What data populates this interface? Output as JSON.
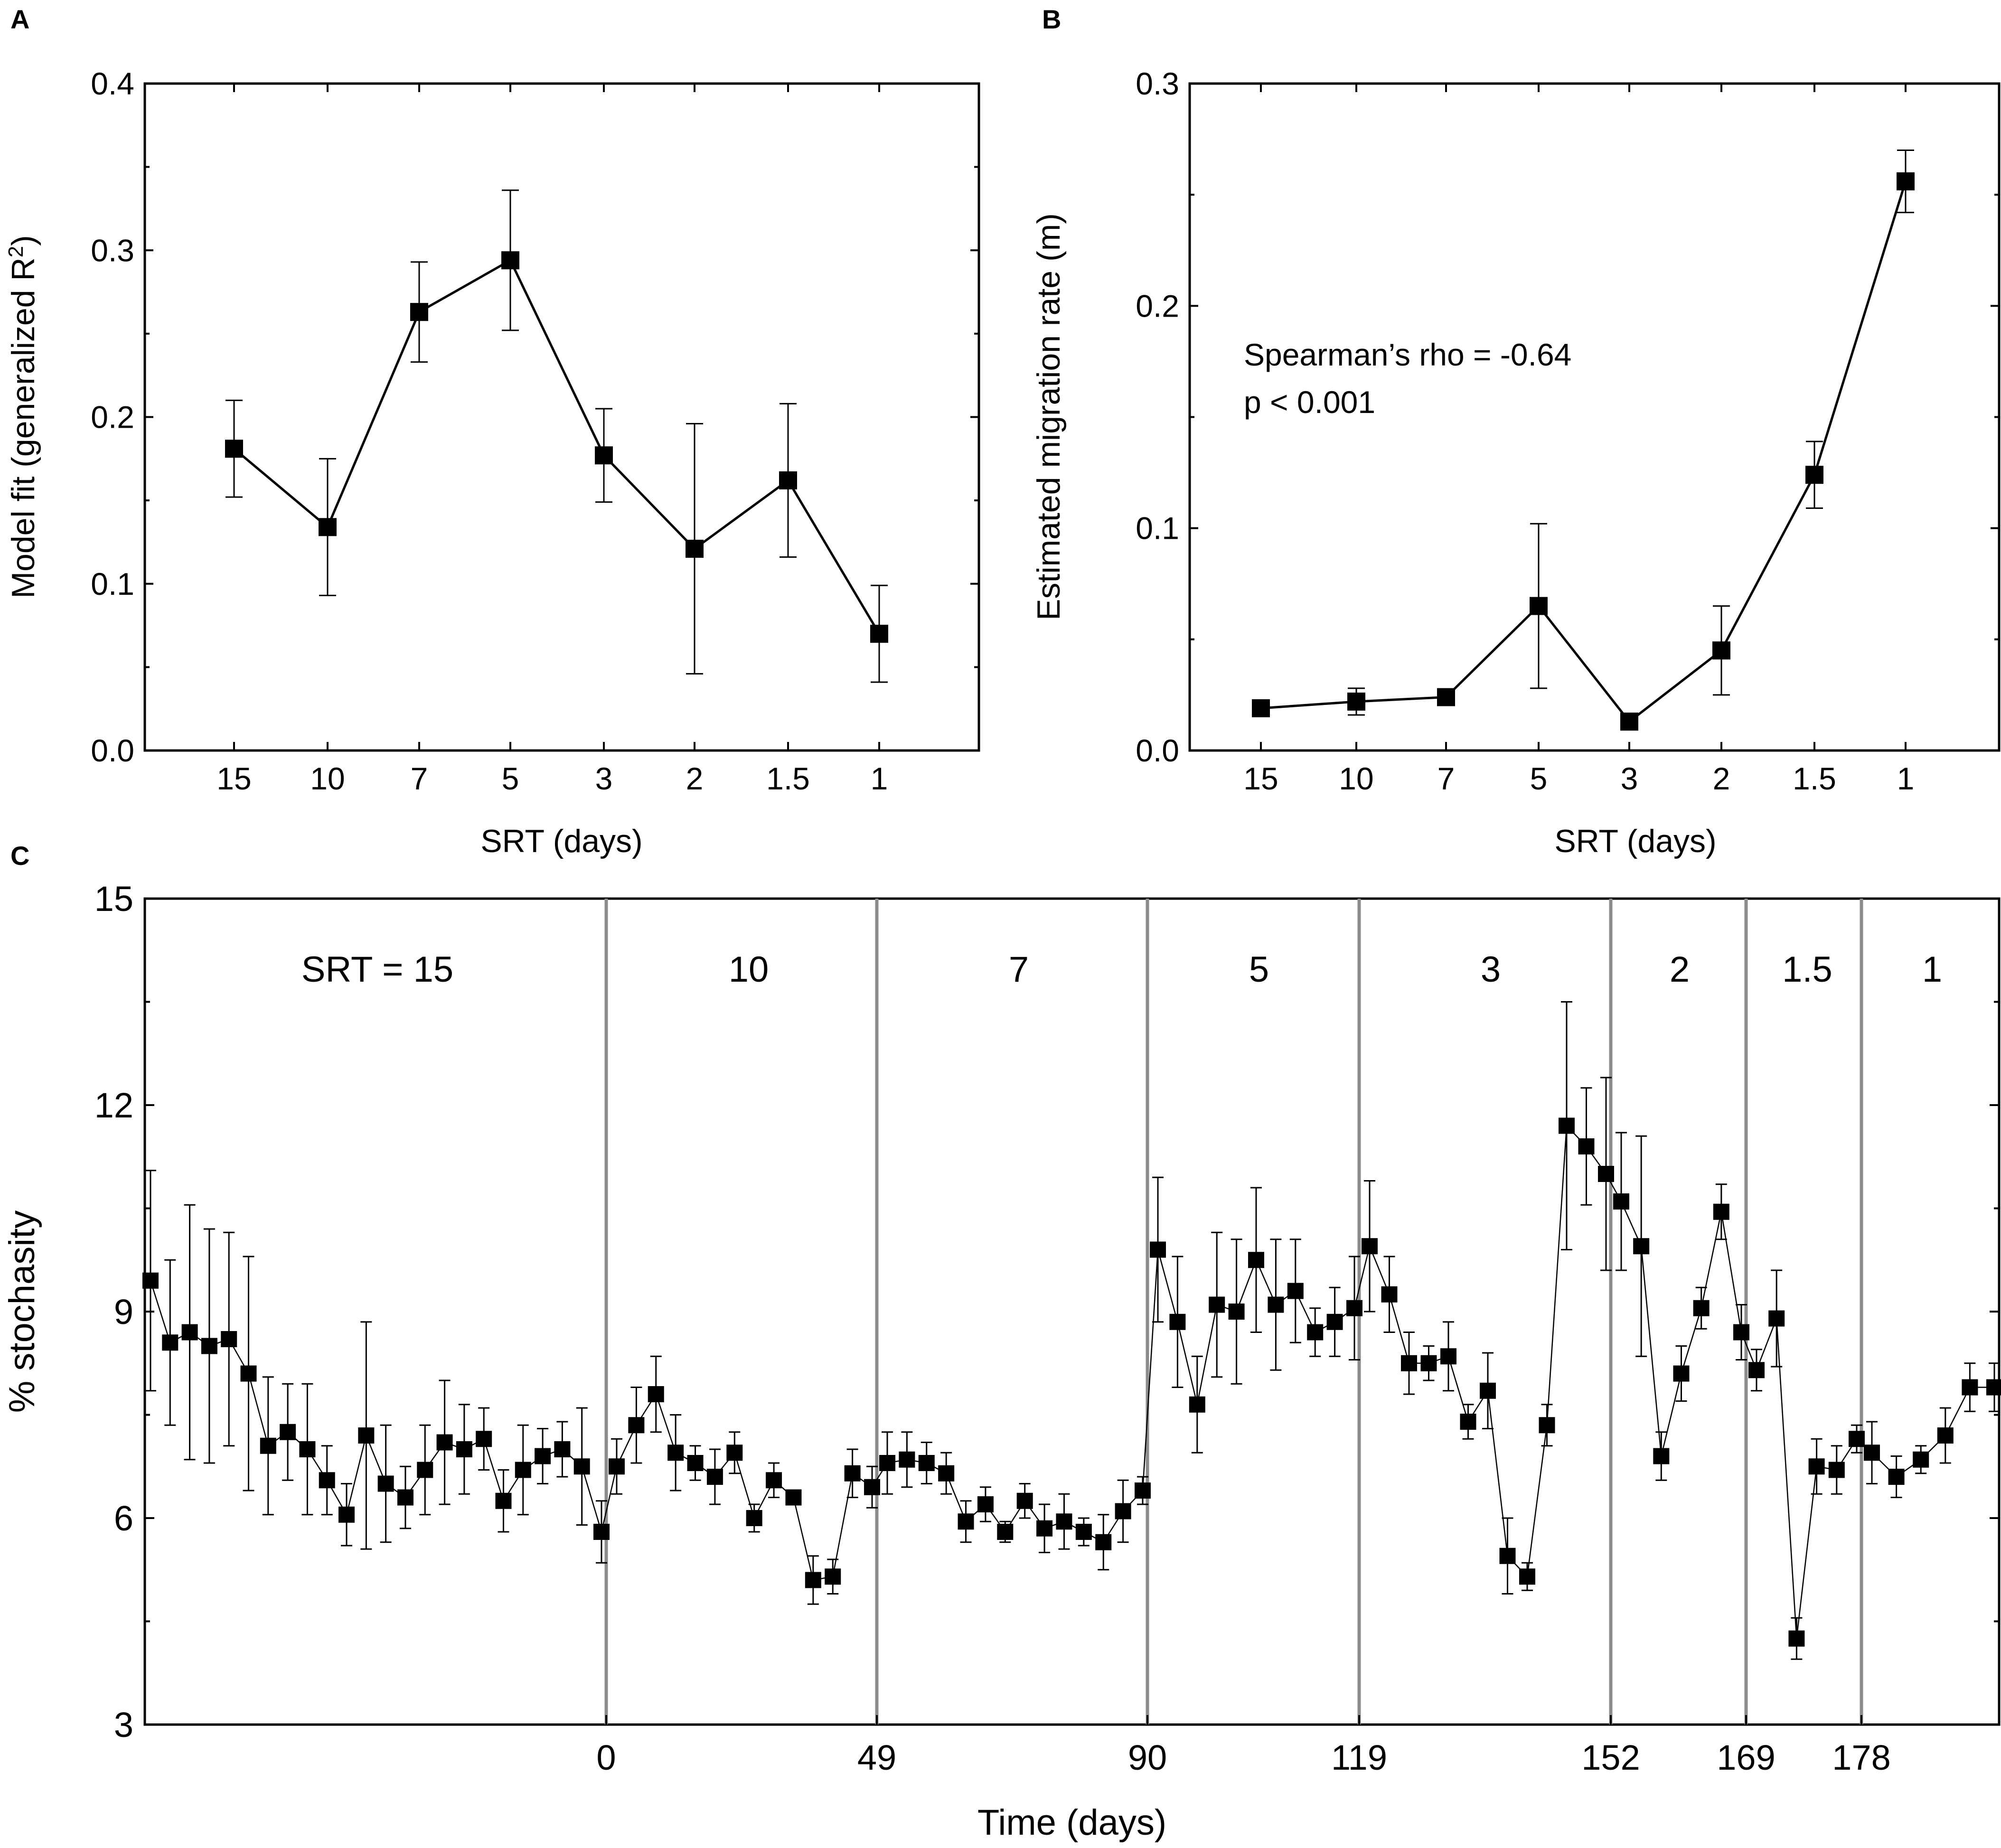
{
  "chart_data": [
    {
      "panel": "A",
      "type": "line",
      "title": "",
      "xlabel": "SRT (days)",
      "ylabel_main": "Model fit (generalized R",
      "ylabel_sup": "2",
      "ylabel_tail": ")",
      "categories": [
        "15",
        "10",
        "7",
        "5",
        "3",
        "2",
        "1.5",
        "1"
      ],
      "values": [
        0.181,
        0.134,
        0.263,
        0.294,
        0.177,
        0.121,
        0.162,
        0.07
      ],
      "errors": [
        0.029,
        0.041,
        0.03,
        0.042,
        0.028,
        0.075,
        0.046,
        0.029
      ],
      "ylim": [
        0.0,
        0.4
      ],
      "yticks": [
        "0.0",
        "0.1",
        "0.2",
        "0.3",
        "0.4"
      ],
      "marker": "square"
    },
    {
      "panel": "B",
      "type": "line",
      "title": "",
      "xlabel": "SRT (days)",
      "ylabel": "Estimated migration rate (m)",
      "categories": [
        "15",
        "10",
        "7",
        "5",
        "3",
        "2",
        "1.5",
        "1"
      ],
      "values": [
        0.019,
        0.022,
        0.024,
        0.065,
        0.013,
        0.045,
        0.124,
        0.256
      ],
      "errors": [
        0.003,
        0.006,
        0.003,
        0.037,
        0.002,
        0.02,
        0.015,
        0.014
      ],
      "ylim": [
        0.0,
        0.3
      ],
      "yticks": [
        "0.0",
        "0.1",
        "0.2",
        "0.3"
      ],
      "annotation": [
        "Spearman’s rho = -0.64",
        "p < 0.001"
      ],
      "marker": "square"
    },
    {
      "panel": "C",
      "type": "line",
      "title": "",
      "xlabel": "Time (days)",
      "ylabel": "% stochasity",
      "ylim": [
        3,
        15
      ],
      "yticks": [
        "3",
        "6",
        "9",
        "12",
        "15"
      ],
      "xticks": [
        "0",
        "49",
        "90",
        "119",
        "152",
        "169",
        "178"
      ],
      "segments": [
        {
          "label": "SRT = 15",
          "count": 24
        },
        {
          "label": "10",
          "count": 14
        },
        {
          "label": "7",
          "count": 14
        },
        {
          "label": "5",
          "count": 11
        },
        {
          "label": "3",
          "count": 13
        },
        {
          "label": "2",
          "count": 7
        },
        {
          "label": "1.5",
          "count": 6
        },
        {
          "label": "1",
          "count": 6
        }
      ],
      "values": [
        9.45,
        8.55,
        8.7,
        8.5,
        8.6,
        8.1,
        7.05,
        7.25,
        7.0,
        6.55,
        6.05,
        7.2,
        6.5,
        6.3,
        6.7,
        7.1,
        7.0,
        7.15,
        6.25,
        6.7,
        6.9,
        7.0,
        6.75,
        5.8,
        6.75,
        7.35,
        7.8,
        6.95,
        6.8,
        6.6,
        6.95,
        6.0,
        6.55,
        6.3,
        5.1,
        5.15,
        6.65,
        6.45,
        6.8,
        6.85,
        6.8,
        6.65,
        5.95,
        6.2,
        5.8,
        6.25,
        5.85,
        5.95,
        5.8,
        5.65,
        6.1,
        6.4,
        9.9,
        8.85,
        7.65,
        9.1,
        9.0,
        9.75,
        9.1,
        9.3,
        8.7,
        8.85,
        9.05,
        9.95,
        9.25,
        8.25,
        8.25,
        8.35,
        7.4,
        7.85,
        5.45,
        5.15,
        7.35,
        11.7,
        11.4,
        11.0,
        10.6,
        9.95,
        6.9,
        8.1,
        9.05,
        10.45,
        8.7,
        8.15,
        8.9,
        4.25,
        6.75,
        6.7,
        7.15,
        6.95,
        6.6,
        6.85,
        7.2,
        7.9,
        7.9
      ],
      "errors": [
        1.6,
        1.2,
        1.85,
        1.7,
        1.55,
        1.7,
        1.0,
        0.7,
        0.95,
        0.5,
        0.45,
        1.65,
        0.85,
        0.45,
        0.65,
        0.9,
        0.65,
        0.45,
        0.45,
        0.65,
        0.4,
        0.4,
        0.85,
        0.45,
        0.4,
        0.55,
        0.55,
        0.55,
        0.25,
        0.4,
        0.3,
        0.2,
        0.25,
        0.1,
        0.35,
        0.25,
        0.35,
        0.3,
        0.45,
        0.4,
        0.3,
        0.3,
        0.3,
        0.25,
        0.15,
        0.25,
        0.35,
        0.4,
        0.2,
        0.4,
        0.45,
        0.2,
        1.05,
        0.95,
        0.7,
        1.05,
        1.05,
        1.05,
        0.95,
        0.75,
        0.35,
        0.5,
        0.75,
        0.95,
        0.55,
        0.45,
        0.25,
        0.5,
        0.25,
        0.55,
        0.55,
        0.2,
        0.3,
        1.8,
        0.85,
        1.4,
        1.0,
        1.6,
        0.35,
        0.4,
        0.3,
        0.4,
        0.4,
        0.3,
        0.7,
        0.3,
        0.4,
        0.35,
        0.2,
        0.45,
        0.3,
        0.2,
        0.4,
        0.35,
        0.35
      ]
    }
  ]
}
